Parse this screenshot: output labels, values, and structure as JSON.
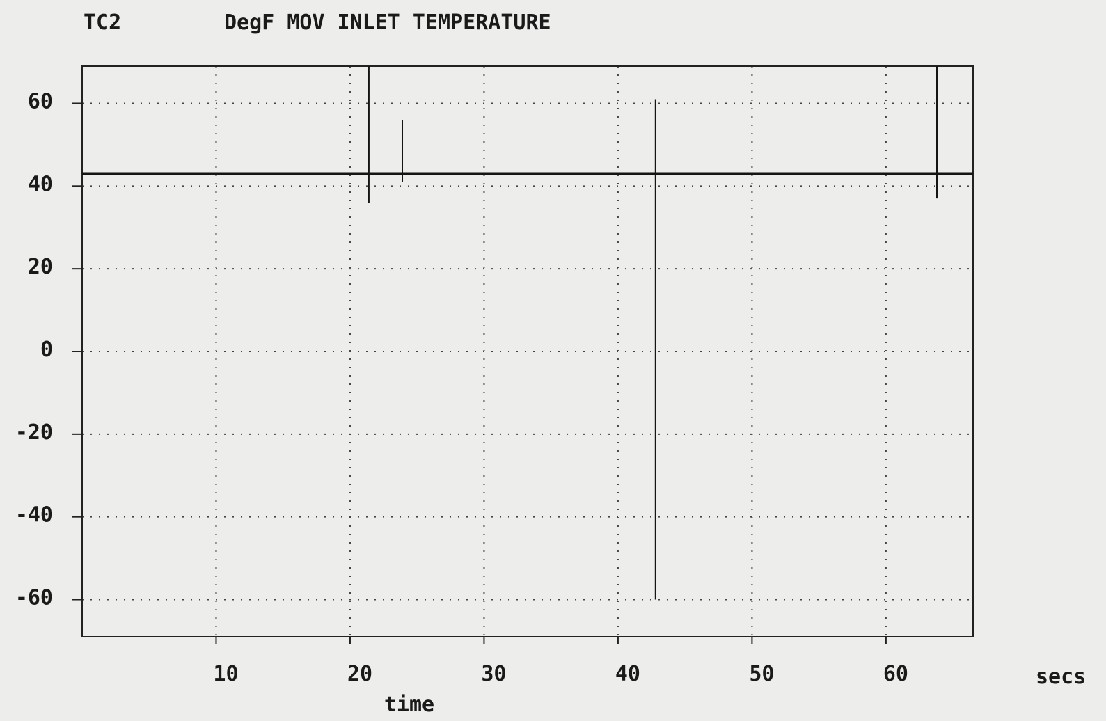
{
  "header": {
    "channel": "TC2",
    "title": "DegF MOV INLET TEMPERATURE"
  },
  "chart_data": {
    "type": "line",
    "title": "DegF MOV INLET TEMPERATURE",
    "channel": "TC2",
    "xlabel": "time",
    "x_unit": "secs",
    "ylabel": "DegF",
    "xlim": [
      0,
      66.5
    ],
    "ylim": [
      -69,
      69
    ],
    "x_ticks": [
      10,
      20,
      30,
      40,
      50,
      60
    ],
    "y_ticks": [
      60,
      40,
      20,
      0,
      -20,
      -40,
      -60
    ],
    "grid": true,
    "baseline": 43,
    "series": [
      {
        "x": [
          0,
          21.4,
          21.4,
          21.4,
          21.4,
          23.9,
          23.9,
          23.9,
          23.9,
          42.8,
          42.8,
          42.8,
          42.8,
          63.8,
          63.8,
          63.8,
          63.8,
          66.5
        ],
        "y": [
          43,
          43,
          69,
          36,
          43,
          43,
          56,
          41,
          43,
          43,
          61,
          -60,
          43,
          43,
          69,
          37,
          43,
          43
        ]
      }
    ],
    "colors": {
      "line": "#151515",
      "grid": "#444444",
      "frame": "#222222"
    }
  }
}
